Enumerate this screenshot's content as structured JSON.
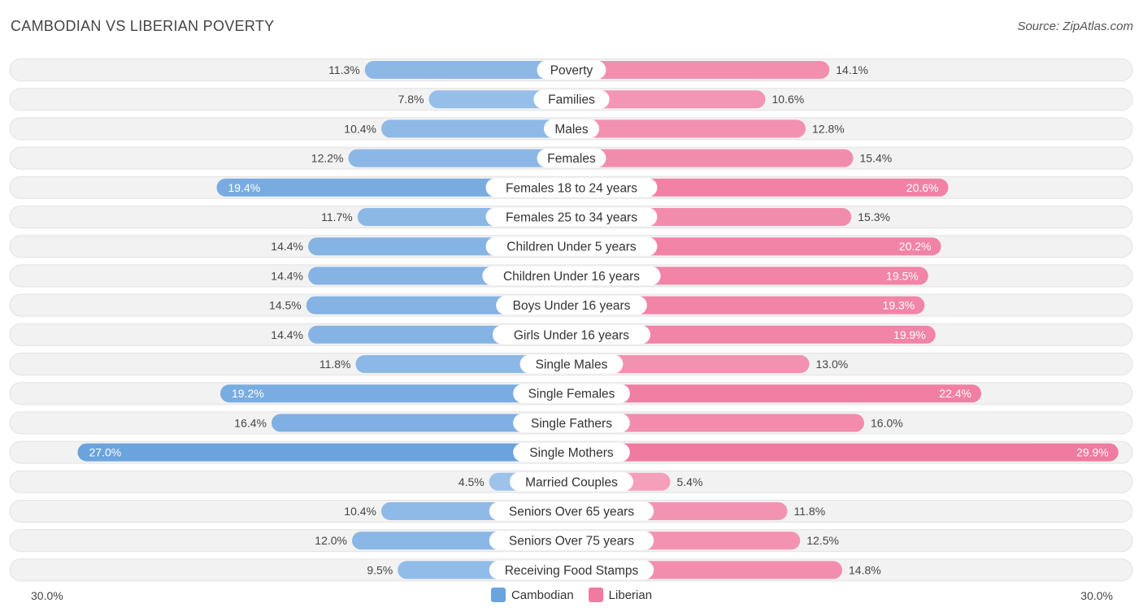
{
  "header": {
    "title": "CAMBODIAN VS LIBERIAN POVERTY",
    "source": "Source: ZipAtlas.com"
  },
  "colors": {
    "cambodian": "#6aa3dd",
    "liberian": "#f07aa0",
    "cambodian_light": "#a9caee",
    "liberian_light": "#f6a9c2"
  },
  "legend": {
    "cambodian": "Cambodian",
    "liberian": "Liberian"
  },
  "axis": {
    "left_label": "30.0%",
    "right_label": "30.0%"
  },
  "chart_data": {
    "type": "bar",
    "orientation": "horizontal-diverging",
    "title": "CAMBODIAN VS LIBERIAN POVERTY",
    "xlim": [
      -30,
      30
    ],
    "categories": [
      "Poverty",
      "Families",
      "Males",
      "Females",
      "Females 18 to 24 years",
      "Females 25 to 34 years",
      "Children Under 5 years",
      "Children Under 16 years",
      "Boys Under 16 years",
      "Girls Under 16 years",
      "Single Males",
      "Single Females",
      "Single Fathers",
      "Single Mothers",
      "Married Couples",
      "Seniors Over 65 years",
      "Seniors Over 75 years",
      "Receiving Food Stamps"
    ],
    "series": [
      {
        "name": "Cambodian",
        "values": [
          11.3,
          7.8,
          10.4,
          12.2,
          19.4,
          11.7,
          14.4,
          14.4,
          14.5,
          14.4,
          11.8,
          19.2,
          16.4,
          27.0,
          4.5,
          10.4,
          12.0,
          9.5
        ],
        "labels": [
          "11.3%",
          "7.8%",
          "10.4%",
          "12.2%",
          "19.4%",
          "11.7%",
          "14.4%",
          "14.4%",
          "14.5%",
          "14.4%",
          "11.8%",
          "19.2%",
          "16.4%",
          "27.0%",
          "4.5%",
          "10.4%",
          "12.0%",
          "9.5%"
        ]
      },
      {
        "name": "Liberian",
        "values": [
          14.1,
          10.6,
          12.8,
          15.4,
          20.6,
          15.3,
          20.2,
          19.5,
          19.3,
          19.9,
          13.0,
          22.4,
          16.0,
          29.9,
          5.4,
          11.8,
          12.5,
          14.8
        ],
        "labels": [
          "14.1%",
          "10.6%",
          "12.8%",
          "15.4%",
          "20.6%",
          "15.3%",
          "20.2%",
          "19.5%",
          "19.3%",
          "19.9%",
          "13.0%",
          "22.4%",
          "16.0%",
          "29.9%",
          "5.4%",
          "11.8%",
          "12.5%",
          "14.8%"
        ]
      }
    ]
  }
}
